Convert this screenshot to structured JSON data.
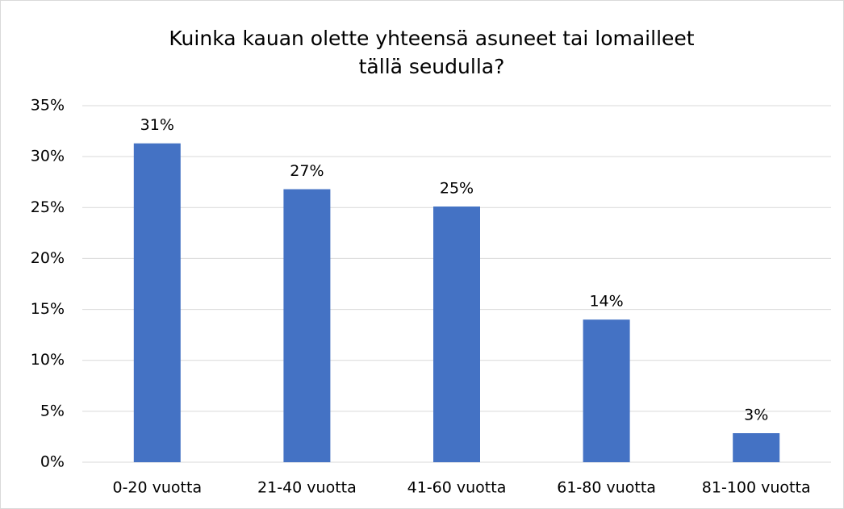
{
  "chart_data": {
    "type": "bar",
    "title": [
      "Kuinka kauan olette yhteensä asuneet tai lomailleet",
      "tällä seudulla?"
    ],
    "categories": [
      "0-20 vuotta",
      "21-40 vuotta",
      "41-60 vuotta",
      "61-80 vuotta",
      "81-100 vuotta"
    ],
    "values": [
      31.3,
      26.8,
      25.1,
      14.0,
      2.85
    ],
    "value_labels": [
      "31%",
      "27%",
      "25%",
      "14%",
      "3%"
    ],
    "color": "#4472c4",
    "ylim": [
      0,
      35
    ],
    "yticks": [
      {
        "value": 0,
        "label": "0%"
      },
      {
        "value": 5,
        "label": "5%"
      },
      {
        "value": 10,
        "label": "10%"
      },
      {
        "value": 15,
        "label": "15%"
      },
      {
        "value": 20,
        "label": "20%"
      },
      {
        "value": 25,
        "label": "25%"
      },
      {
        "value": 30,
        "label": "30%"
      },
      {
        "value": 35,
        "label": "35%"
      }
    ],
    "grid": true
  }
}
